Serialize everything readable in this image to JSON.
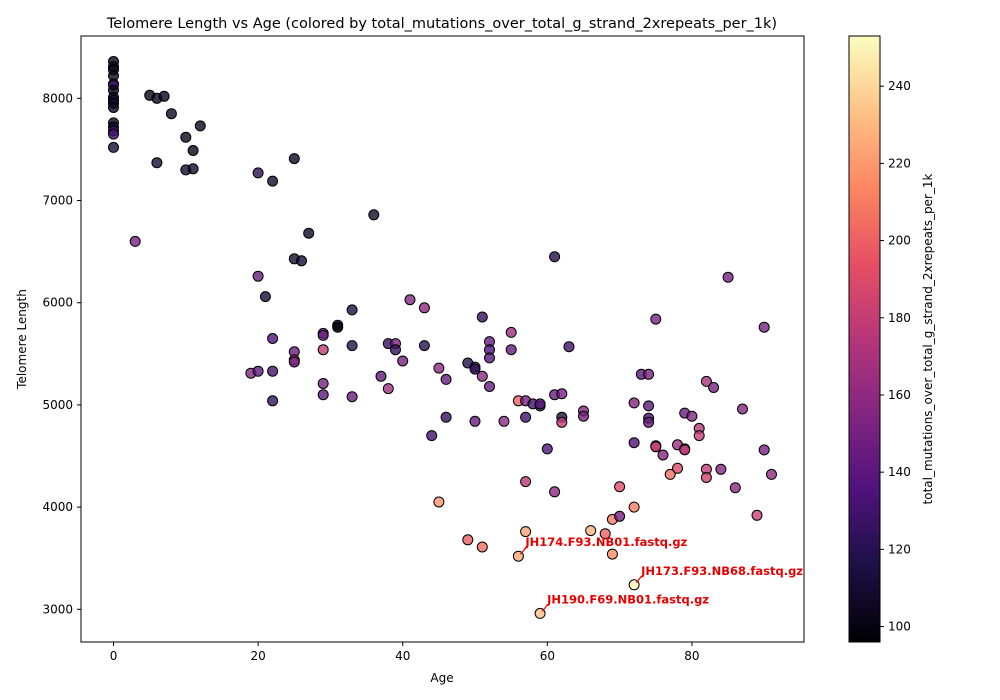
{
  "chart_data": {
    "type": "scatter",
    "title": "Telomere Length vs Age (colored by total_mutations_over_total_g_strand_2xrepeats_per_1k)",
    "xlabel": "Age",
    "ylabel": "Telomere Length",
    "xlim": [
      -4.5,
      95.5
    ],
    "ylim": [
      2680,
      8610
    ],
    "xticks": [
      0,
      20,
      40,
      60,
      80
    ],
    "yticks": [
      3000,
      4000,
      5000,
      6000,
      7000,
      8000
    ],
    "grid": false,
    "colorbar": {
      "label": "total_mutations_over_total_g_strand_2xrepeats_per_1k",
      "range": [
        96,
        253
      ],
      "ticks": [
        100,
        120,
        140,
        160,
        180,
        200,
        220,
        240
      ],
      "colormap": "magma"
    },
    "points": [
      {
        "x": 0,
        "y": 8360,
        "c": 100
      },
      {
        "x": 0,
        "y": 8310,
        "c": 102
      },
      {
        "x": 0,
        "y": 8280,
        "c": 104
      },
      {
        "x": 0,
        "y": 8220,
        "c": 103
      },
      {
        "x": 0,
        "y": 8140,
        "c": 106
      },
      {
        "x": 0,
        "y": 8130,
        "c": 128
      },
      {
        "x": 0,
        "y": 8080,
        "c": 103
      },
      {
        "x": 0,
        "y": 8010,
        "c": 105
      },
      {
        "x": 0,
        "y": 7980,
        "c": 108
      },
      {
        "x": 0,
        "y": 7950,
        "c": 110
      },
      {
        "x": 0,
        "y": 7910,
        "c": 104
      },
      {
        "x": 0,
        "y": 7760,
        "c": 103
      },
      {
        "x": 0,
        "y": 7720,
        "c": 106
      },
      {
        "x": 0,
        "y": 7680,
        "c": 132
      },
      {
        "x": 0,
        "y": 7650,
        "c": 130
      },
      {
        "x": 0,
        "y": 7520,
        "c": 112
      },
      {
        "x": 3,
        "y": 6600,
        "c": 150
      },
      {
        "x": 5,
        "y": 8030,
        "c": 102
      },
      {
        "x": 6,
        "y": 8000,
        "c": 104
      },
      {
        "x": 7,
        "y": 8020,
        "c": 103
      },
      {
        "x": 8,
        "y": 7850,
        "c": 105
      },
      {
        "x": 6,
        "y": 7370,
        "c": 110
      },
      {
        "x": 10,
        "y": 7620,
        "c": 104
      },
      {
        "x": 10,
        "y": 7300,
        "c": 110
      },
      {
        "x": 11,
        "y": 7490,
        "c": 102
      },
      {
        "x": 11,
        "y": 7310,
        "c": 108
      },
      {
        "x": 12,
        "y": 7730,
        "c": 104
      },
      {
        "x": 19,
        "y": 5310,
        "c": 155
      },
      {
        "x": 20,
        "y": 7270,
        "c": 120
      },
      {
        "x": 20,
        "y": 6260,
        "c": 145
      },
      {
        "x": 20,
        "y": 5330,
        "c": 140
      },
      {
        "x": 21,
        "y": 6060,
        "c": 112
      },
      {
        "x": 22,
        "y": 7190,
        "c": 108
      },
      {
        "x": 22,
        "y": 5650,
        "c": 135
      },
      {
        "x": 22,
        "y": 5330,
        "c": 130
      },
      {
        "x": 22,
        "y": 5040,
        "c": 125
      },
      {
        "x": 25,
        "y": 7410,
        "c": 106
      },
      {
        "x": 25,
        "y": 6430,
        "c": 110
      },
      {
        "x": 25,
        "y": 5520,
        "c": 145
      },
      {
        "x": 25,
        "y": 5440,
        "c": 170
      },
      {
        "x": 25,
        "y": 5420,
        "c": 150
      },
      {
        "x": 26,
        "y": 6410,
        "c": 112
      },
      {
        "x": 27,
        "y": 6680,
        "c": 106
      },
      {
        "x": 29,
        "y": 5700,
        "c": 140
      },
      {
        "x": 29,
        "y": 5680,
        "c": 148
      },
      {
        "x": 29,
        "y": 5540,
        "c": 178
      },
      {
        "x": 29,
        "y": 5210,
        "c": 150
      },
      {
        "x": 29,
        "y": 5100,
        "c": 140
      },
      {
        "x": 31,
        "y": 5780,
        "c": 100
      },
      {
        "x": 31,
        "y": 5760,
        "c": 98
      },
      {
        "x": 33,
        "y": 5930,
        "c": 115
      },
      {
        "x": 33,
        "y": 5580,
        "c": 118
      },
      {
        "x": 33,
        "y": 5080,
        "c": 145
      },
      {
        "x": 36,
        "y": 6860,
        "c": 108
      },
      {
        "x": 37,
        "y": 5280,
        "c": 140
      },
      {
        "x": 38,
        "y": 5600,
        "c": 125
      },
      {
        "x": 38,
        "y": 5160,
        "c": 165
      },
      {
        "x": 39,
        "y": 5600,
        "c": 150
      },
      {
        "x": 39,
        "y": 5540,
        "c": 125
      },
      {
        "x": 40,
        "y": 5430,
        "c": 150
      },
      {
        "x": 41,
        "y": 6030,
        "c": 155
      },
      {
        "x": 43,
        "y": 5950,
        "c": 160
      },
      {
        "x": 43,
        "y": 5580,
        "c": 120
      },
      {
        "x": 44,
        "y": 4700,
        "c": 130
      },
      {
        "x": 45,
        "y": 5360,
        "c": 160
      },
      {
        "x": 45,
        "y": 4050,
        "c": 218
      },
      {
        "x": 46,
        "y": 5250,
        "c": 145
      },
      {
        "x": 46,
        "y": 4880,
        "c": 125
      },
      {
        "x": 49,
        "y": 5410,
        "c": 118
      },
      {
        "x": 49,
        "y": 3680,
        "c": 198
      },
      {
        "x": 50,
        "y": 5370,
        "c": 120
      },
      {
        "x": 50,
        "y": 5350,
        "c": 125
      },
      {
        "x": 50,
        "y": 4840,
        "c": 145
      },
      {
        "x": 51,
        "y": 5860,
        "c": 125
      },
      {
        "x": 51,
        "y": 5280,
        "c": 160
      },
      {
        "x": 51,
        "y": 3610,
        "c": 205
      },
      {
        "x": 52,
        "y": 5620,
        "c": 145
      },
      {
        "x": 52,
        "y": 5540,
        "c": 135
      },
      {
        "x": 52,
        "y": 5460,
        "c": 138
      },
      {
        "x": 52,
        "y": 5180,
        "c": 145
      },
      {
        "x": 54,
        "y": 4840,
        "c": 160
      },
      {
        "x": 55,
        "y": 5710,
        "c": 165
      },
      {
        "x": 55,
        "y": 5540,
        "c": 145
      },
      {
        "x": 56,
        "y": 5040,
        "c": 200
      },
      {
        "x": 56,
        "y": 3520,
        "c": 225
      },
      {
        "x": 57,
        "y": 5040,
        "c": 150
      },
      {
        "x": 57,
        "y": 4880,
        "c": 130
      },
      {
        "x": 57,
        "y": 4250,
        "c": 175
      },
      {
        "x": 57,
        "y": 3760,
        "c": 222
      },
      {
        "x": 58,
        "y": 5010,
        "c": 130
      },
      {
        "x": 59,
        "y": 4990,
        "c": 125
      },
      {
        "x": 59,
        "y": 5010,
        "c": 140
      },
      {
        "x": 59,
        "y": 2960,
        "c": 232
      },
      {
        "x": 60,
        "y": 4570,
        "c": 135
      },
      {
        "x": 61,
        "y": 6450,
        "c": 120
      },
      {
        "x": 61,
        "y": 5100,
        "c": 145
      },
      {
        "x": 61,
        "y": 4150,
        "c": 160
      },
      {
        "x": 62,
        "y": 5110,
        "c": 150
      },
      {
        "x": 62,
        "y": 4880,
        "c": 118
      },
      {
        "x": 62,
        "y": 4830,
        "c": 180
      },
      {
        "x": 63,
        "y": 5570,
        "c": 130
      },
      {
        "x": 65,
        "y": 4940,
        "c": 155
      },
      {
        "x": 65,
        "y": 4890,
        "c": 150
      },
      {
        "x": 66,
        "y": 3770,
        "c": 228
      },
      {
        "x": 68,
        "y": 3740,
        "c": 200
      },
      {
        "x": 69,
        "y": 3880,
        "c": 210
      },
      {
        "x": 69,
        "y": 3540,
        "c": 215
      },
      {
        "x": 70,
        "y": 4200,
        "c": 192
      },
      {
        "x": 70,
        "y": 3910,
        "c": 150
      },
      {
        "x": 72,
        "y": 5020,
        "c": 155
      },
      {
        "x": 72,
        "y": 4630,
        "c": 135
      },
      {
        "x": 72,
        "y": 4000,
        "c": 210
      },
      {
        "x": 72,
        "y": 3240,
        "c": 250
      },
      {
        "x": 73,
        "y": 5300,
        "c": 140
      },
      {
        "x": 74,
        "y": 5300,
        "c": 150
      },
      {
        "x": 74,
        "y": 4990,
        "c": 140
      },
      {
        "x": 74,
        "y": 4870,
        "c": 135
      },
      {
        "x": 74,
        "y": 4830,
        "c": 145
      },
      {
        "x": 75,
        "y": 5840,
        "c": 150
      },
      {
        "x": 75,
        "y": 4600,
        "c": 175
      },
      {
        "x": 75,
        "y": 4590,
        "c": 180
      },
      {
        "x": 76,
        "y": 4510,
        "c": 155
      },
      {
        "x": 77,
        "y": 4320,
        "c": 205
      },
      {
        "x": 78,
        "y": 4610,
        "c": 165
      },
      {
        "x": 78,
        "y": 4380,
        "c": 190
      },
      {
        "x": 79,
        "y": 4920,
        "c": 145
      },
      {
        "x": 79,
        "y": 4570,
        "c": 180
      },
      {
        "x": 79,
        "y": 4560,
        "c": 175
      },
      {
        "x": 80,
        "y": 4890,
        "c": 155
      },
      {
        "x": 81,
        "y": 4770,
        "c": 175
      },
      {
        "x": 81,
        "y": 4700,
        "c": 180
      },
      {
        "x": 82,
        "y": 5230,
        "c": 170
      },
      {
        "x": 82,
        "y": 4370,
        "c": 178
      },
      {
        "x": 82,
        "y": 4290,
        "c": 185
      },
      {
        "x": 83,
        "y": 5170,
        "c": 150
      },
      {
        "x": 84,
        "y": 4370,
        "c": 155
      },
      {
        "x": 85,
        "y": 6250,
        "c": 150
      },
      {
        "x": 86,
        "y": 4190,
        "c": 160
      },
      {
        "x": 87,
        "y": 4960,
        "c": 155
      },
      {
        "x": 89,
        "y": 3920,
        "c": 182
      },
      {
        "x": 90,
        "y": 5760,
        "c": 150
      },
      {
        "x": 90,
        "y": 4560,
        "c": 150
      },
      {
        "x": 91,
        "y": 4320,
        "c": 160
      }
    ],
    "annotations": [
      {
        "text": "JH174.F93.NB01.fastq.gz",
        "x": 56,
        "y": 3520
      },
      {
        "text": "JH173.F93.NB68.fastq.gz",
        "x": 72,
        "y": 3240
      },
      {
        "text": "JH190.F69.NB01.fastq.gz",
        "x": 59,
        "y": 2960
      }
    ],
    "annotation_color": "#e60000"
  }
}
